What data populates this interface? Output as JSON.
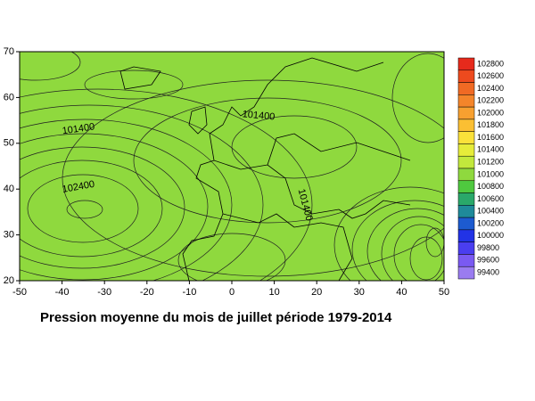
{
  "chart_data": {
    "type": "contour",
    "title": "Pression moyenne du mois  de juillet période 1979-2014",
    "xlim": [
      -50,
      50
    ],
    "xticks": [
      -50,
      -40,
      -30,
      -20,
      -10,
      0,
      10,
      20,
      30,
      40,
      50
    ],
    "ylim": [
      20,
      70
    ],
    "yticks": [
      20,
      30,
      40,
      50,
      60,
      70
    ],
    "levels": [
      102800,
      102600,
      102400,
      102200,
      102000,
      101800,
      101600,
      101400,
      101200,
      101000,
      100800,
      100600,
      100400,
      100200,
      100000,
      99800,
      99600,
      99400
    ],
    "level_colors": [
      "#e62a1c",
      "#ed4a1e",
      "#f06a24",
      "#f4852a",
      "#f7a030",
      "#fbbf33",
      "#fbe13a",
      "#e6ec3a",
      "#c2e83c",
      "#8fd93e",
      "#4fc93f",
      "#2aa86a",
      "#1f8a9a",
      "#1d5bd0",
      "#2233e6",
      "#4a3ef0",
      "#7a5af2",
      "#9a7cf0"
    ],
    "contour_labels": [
      101400,
      102400,
      101400,
      101400
    ]
  }
}
